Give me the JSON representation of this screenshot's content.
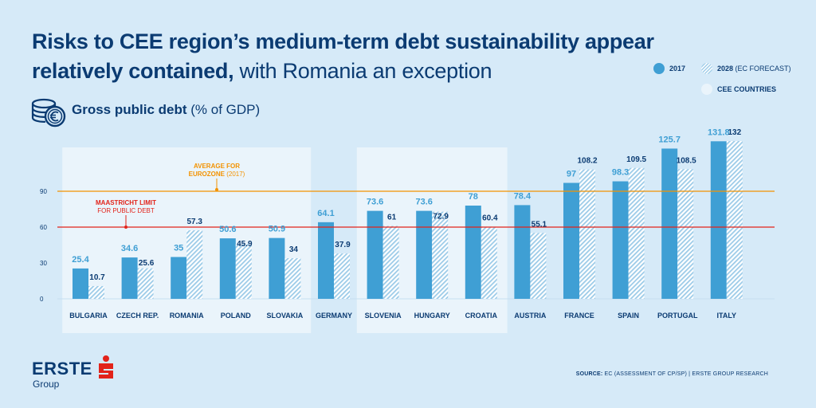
{
  "title": {
    "bold": "Risks to CEE region’s medium-term debt sustainability appear relatively contained,",
    "light": " with Romania an exception"
  },
  "subtitle": {
    "bold": "Gross public debt",
    "light": " (% of GDP)"
  },
  "legend": {
    "s2017": "2017",
    "s2028": "2028",
    "s2028_note": " (EC FORECAST)",
    "cee": "CEE COUNTRIES"
  },
  "colors": {
    "bar2017": "#3f9fd4",
    "bar2028_stripe": "#9ccbe8",
    "label2017": "#3f9fd4",
    "label2028": "#0b3b72",
    "cee_panel": "#eaf4fb",
    "eurozone_line": "#f39200",
    "maastricht_line": "#e2231a",
    "text_dark": "#0b3b72"
  },
  "chart_data": {
    "type": "bar",
    "categories": [
      "BULGARIA",
      "CZECH REP.",
      "ROMANIA",
      "POLAND",
      "SLOVAKIA",
      "GERMANY",
      "SLOVENIA",
      "HUNGARY",
      "CROATIA",
      "AUSTRIA",
      "FRANCE",
      "SPAIN",
      "PORTUGAL",
      "ITALY"
    ],
    "series": [
      {
        "name": "2017",
        "values": [
          25.4,
          34.6,
          35,
          50.6,
          50.9,
          64.1,
          73.6,
          73.6,
          78,
          78.4,
          97,
          98.3,
          125.7,
          131.8
        ]
      },
      {
        "name": "2028 (EC FORECAST)",
        "values": [
          10.7,
          25.6,
          57.3,
          45.9,
          34,
          37.9,
          61,
          72.9,
          60.4,
          55.1,
          108.2,
          109.5,
          108.5,
          132
        ]
      }
    ],
    "y_ticks": [
      0,
      30,
      60,
      90
    ],
    "ylim": [
      0,
      132
    ],
    "grid": false,
    "cee_groups": [
      [
        "BULGARIA",
        "SLOVAKIA"
      ],
      [
        "SLOVENIA",
        "CROATIA"
      ]
    ],
    "reference_lines": [
      {
        "label_bold": "AVERAGE FOR EUROZONE",
        "label_light": " (2017)",
        "label_line1": "AVERAGE FOR",
        "label_line2_bold": "EUROZONE",
        "value": 90
      },
      {
        "label_line1": "MAASTRICHT LIMIT",
        "label_line2": "FOR PUBLIC DEBT",
        "value": 60
      }
    ]
  },
  "logo": {
    "word": "ERSTE",
    "sub": "Group"
  },
  "source": {
    "label": "SOURCE:",
    "text": " EC (ASSESSMENT OF CP/SP) | ERSTE GROUP RESEARCH"
  }
}
